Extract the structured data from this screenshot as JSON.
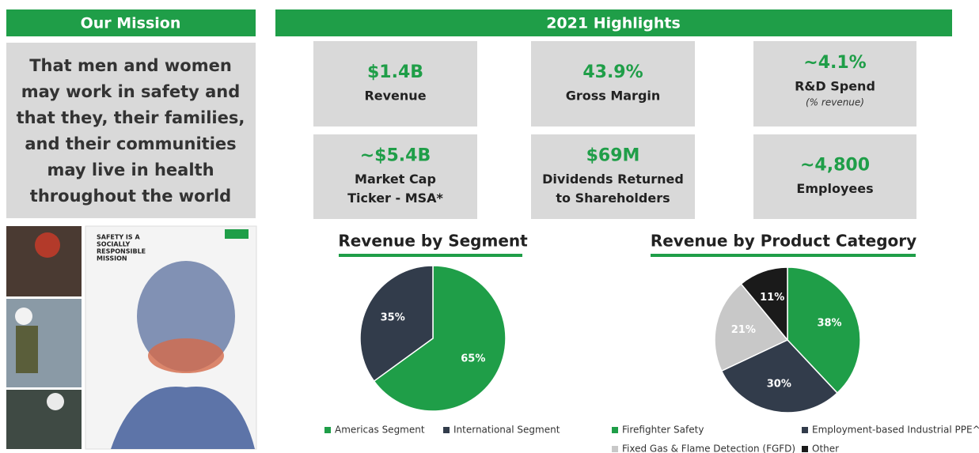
{
  "mission": {
    "title": "Our Mission",
    "lines": [
      "That men and women",
      "may work in safety and",
      "that they, their families,",
      "and their communities",
      "may live in health",
      "throughout the world"
    ]
  },
  "highlights": {
    "title": "2021 Highlights",
    "tiles": [
      {
        "value": "$1.4B",
        "lines": [
          "Revenue"
        ]
      },
      {
        "value": "43.9%",
        "lines": [
          "Gross Margin"
        ]
      },
      {
        "value": "~4.1%",
        "lines": [
          "R&D Spend"
        ],
        "note": "(% revenue)"
      },
      {
        "value": "~$5.4B",
        "lines": [
          "Market Cap",
          "Ticker - MSA*"
        ]
      },
      {
        "value": "$69M",
        "lines": [
          "Dividends Returned",
          "to Shareholders"
        ]
      },
      {
        "value": "~4,800",
        "lines": [
          "Employees"
        ]
      }
    ]
  },
  "brochure_text": [
    "SAFETY IS A",
    "SOCIALLY",
    "RESPONSIBLE",
    "MISSION"
  ],
  "chart_data": [
    {
      "type": "pie",
      "title": "Revenue by Segment",
      "categories": [
        "Americas Segment",
        "International Segment"
      ],
      "values": [
        65,
        35
      ],
      "value_labels": [
        "65%",
        "35%"
      ],
      "colors": [
        "#1f9e48",
        "#323c4b"
      ]
    },
    {
      "type": "pie",
      "title": "Revenue by Product Category",
      "categories": [
        "Firefighter Safety",
        "Employment-based Industrial PPE^",
        "Fixed Gas & Flame Detection (FGFD)",
        "Other"
      ],
      "values": [
        38,
        30,
        21,
        11
      ],
      "value_labels": [
        "38%",
        "30%",
        "21%",
        "11%"
      ],
      "colors": [
        "#1f9e48",
        "#323c4b",
        "#c8c8c8",
        "#1a1a1a"
      ]
    }
  ]
}
